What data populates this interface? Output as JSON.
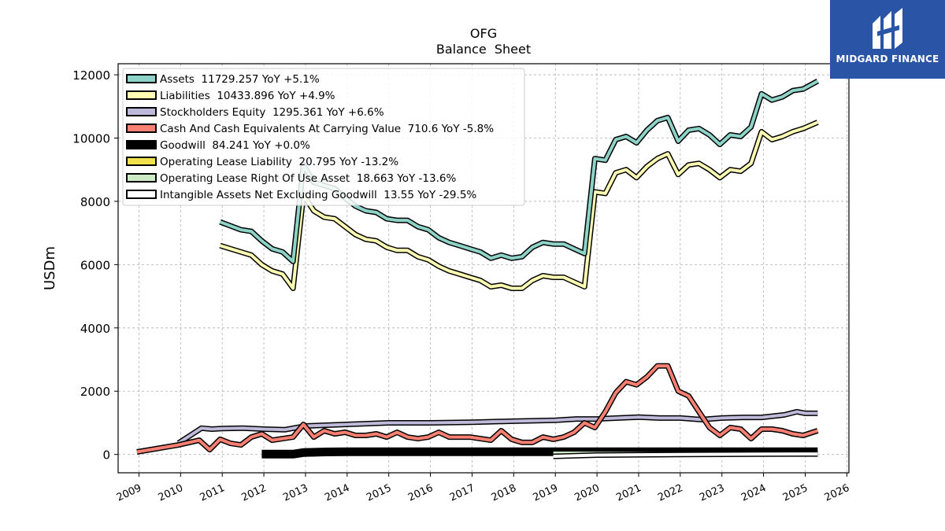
{
  "chart_data": {
    "type": "line",
    "title": "OFG",
    "subtitle": "Balance  Sheet",
    "ylabel": "USDm",
    "xlabel": "",
    "xlim": [
      2008.5,
      2026.05
    ],
    "ylim": [
      -580,
      12350
    ],
    "yticks": [
      0,
      2000,
      4000,
      6000,
      8000,
      10000,
      12000
    ],
    "xticks": [
      2009,
      2010,
      2011,
      2012,
      2013,
      2014,
      2015,
      2016,
      2017,
      2018,
      2019,
      2020,
      2021,
      2022,
      2023,
      2024,
      2025,
      2026
    ],
    "grid": true,
    "legend_position": "top-left",
    "series": [
      {
        "name": "Assets  11729.257 YoY +5.1%",
        "color": "#8dd3c7",
        "x": [
          2010.95,
          2011.45,
          2011.7,
          2011.95,
          2012.2,
          2012.45,
          2012.7,
          2012.95,
          2013.2,
          2013.45,
          2013.7,
          2013.95,
          2014.2,
          2014.45,
          2014.7,
          2014.95,
          2015.2,
          2015.45,
          2015.7,
          2015.95,
          2016.2,
          2016.45,
          2016.7,
          2016.95,
          2017.2,
          2017.45,
          2017.7,
          2017.95,
          2018.2,
          2018.45,
          2018.7,
          2018.95,
          2019.2,
          2019.45,
          2019.7,
          2019.95,
          2020.2,
          2020.45,
          2020.7,
          2020.95,
          2021.2,
          2021.45,
          2021.7,
          2021.95,
          2022.2,
          2022.45,
          2022.7,
          2022.95,
          2023.2,
          2023.45,
          2023.7,
          2023.95,
          2024.2,
          2024.45,
          2024.7,
          2024.95,
          2025.3
        ],
        "y": [
          7350,
          7100,
          7050,
          6750,
          6500,
          6400,
          6100,
          9150,
          8600,
          8500,
          8400,
          8100,
          7850,
          7700,
          7650,
          7450,
          7400,
          7400,
          7200,
          7100,
          6850,
          6700,
          6600,
          6500,
          6400,
          6200,
          6300,
          6200,
          6250,
          6550,
          6700,
          6650,
          6650,
          6500,
          6350,
          9350,
          9300,
          9950,
          10050,
          9850,
          10250,
          10550,
          10650,
          9900,
          10250,
          10300,
          10100,
          9800,
          10100,
          10050,
          10350,
          11400,
          11200,
          11300,
          11500,
          11550,
          11800
        ]
      },
      {
        "name": "Liabilities  10433.896 YoY +4.9%",
        "color": "#ffffb3",
        "x": [
          2010.95,
          2011.45,
          2011.7,
          2011.95,
          2012.2,
          2012.45,
          2012.7,
          2012.95,
          2013.2,
          2013.45,
          2013.7,
          2013.95,
          2014.2,
          2014.45,
          2014.7,
          2014.95,
          2015.2,
          2015.45,
          2015.7,
          2015.95,
          2016.2,
          2016.45,
          2016.7,
          2016.95,
          2017.2,
          2017.45,
          2017.7,
          2017.95,
          2018.2,
          2018.45,
          2018.7,
          2018.95,
          2019.2,
          2019.45,
          2019.7,
          2019.95,
          2020.2,
          2020.45,
          2020.7,
          2020.95,
          2021.2,
          2021.45,
          2021.7,
          2021.95,
          2022.2,
          2022.45,
          2022.7,
          2022.95,
          2023.2,
          2023.45,
          2023.7,
          2023.95,
          2024.2,
          2024.45,
          2024.7,
          2024.95,
          2025.3
        ],
        "y": [
          6600,
          6400,
          6300,
          6000,
          5800,
          5700,
          5250,
          8200,
          7700,
          7500,
          7450,
          7200,
          6950,
          6800,
          6750,
          6550,
          6450,
          6450,
          6250,
          6150,
          5950,
          5800,
          5700,
          5600,
          5500,
          5300,
          5350,
          5250,
          5250,
          5500,
          5650,
          5600,
          5600,
          5450,
          5300,
          8300,
          8250,
          8900,
          9000,
          8750,
          9100,
          9350,
          9500,
          8850,
          9150,
          9200,
          9000,
          8750,
          9000,
          8950,
          9200,
          10200,
          9950,
          10050,
          10200,
          10300,
          10500
        ]
      },
      {
        "name": "Stockholders Equity  1295.361 YoY +6.6%",
        "color": "#bebada",
        "x": [
          2009.95,
          2010.5,
          2010.75,
          2011.0,
          2011.5,
          2012.0,
          2012.5,
          2013.0,
          2014.0,
          2015.0,
          2016.0,
          2017.0,
          2018.0,
          2019.0,
          2019.5,
          2020.0,
          2020.5,
          2021.0,
          2021.5,
          2022.0,
          2022.5,
          2023.0,
          2023.5,
          2023.95,
          2024.5,
          2024.8,
          2025.0,
          2025.3
        ],
        "y": [
          360,
          830,
          800,
          820,
          830,
          800,
          780,
          900,
          950,
          1000,
          1000,
          1020,
          1050,
          1080,
          1120,
          1120,
          1150,
          1180,
          1150,
          1150,
          1100,
          1150,
          1170,
          1170,
          1250,
          1350,
          1300,
          1300
        ]
      },
      {
        "name": "Cash And Cash Equivalents At Carrying Value  710.6 YoY -5.8%",
        "color": "#fb8072",
        "x": [
          2008.95,
          2009.95,
          2010.45,
          2010.7,
          2010.95,
          2011.2,
          2011.45,
          2011.7,
          2011.95,
          2012.2,
          2012.45,
          2012.7,
          2012.95,
          2013.2,
          2013.45,
          2013.7,
          2013.95,
          2014.2,
          2014.45,
          2014.7,
          2014.95,
          2015.2,
          2015.45,
          2015.7,
          2015.95,
          2016.2,
          2016.45,
          2016.7,
          2016.95,
          2017.2,
          2017.45,
          2017.7,
          2017.95,
          2018.2,
          2018.45,
          2018.7,
          2018.95,
          2019.2,
          2019.45,
          2019.7,
          2019.95,
          2020.2,
          2020.45,
          2020.7,
          2020.95,
          2021.2,
          2021.45,
          2021.7,
          2021.95,
          2022.2,
          2022.45,
          2022.7,
          2022.95,
          2023.2,
          2023.45,
          2023.7,
          2023.95,
          2024.2,
          2024.45,
          2024.7,
          2024.95,
          2025.3
        ],
        "y": [
          80,
          300,
          450,
          150,
          480,
          350,
          300,
          550,
          650,
          450,
          500,
          550,
          950,
          550,
          750,
          650,
          700,
          600,
          600,
          650,
          550,
          700,
          550,
          500,
          550,
          700,
          550,
          550,
          550,
          500,
          450,
          750,
          480,
          380,
          380,
          550,
          480,
          550,
          700,
          1000,
          850,
          1350,
          1950,
          2300,
          2200,
          2450,
          2800,
          2800,
          2000,
          1850,
          1350,
          850,
          600,
          850,
          800,
          500,
          800,
          800,
          750,
          650,
          600,
          750
        ]
      },
      {
        "name": "Goodwill  84.241 YoY +0.0%",
        "color": "#000000",
        "x": [
          2011.95,
          2012.7,
          2012.95,
          2013.5,
          2014.0,
          2015.0,
          2016.0,
          2017.0,
          2018.0,
          2019.0,
          2020.0,
          2021.0,
          2022.0,
          2023.0,
          2024.0,
          2025.3
        ],
        "y": [
          10,
          10,
          60,
          80,
          84,
          84,
          84,
          84,
          84,
          84,
          84,
          84,
          84,
          84,
          84,
          84
        ]
      },
      {
        "name": "Operating Lease Liability  20.795 YoY -13.2%",
        "color": "#f0e14a",
        "x": [
          2018.95,
          2019.5,
          2020.0,
          2021.0,
          2022.0,
          2023.0,
          2024.0,
          2025.3
        ],
        "y": [
          45,
          45,
          40,
          35,
          32,
          28,
          24,
          21
        ]
      },
      {
        "name": "Operating Lease Right Of Use Asset  18.663 YoY -13.6%",
        "color": "#ccebc5",
        "x": [
          2018.95,
          2019.5,
          2020.0,
          2021.0,
          2022.0,
          2023.0,
          2024.0,
          2025.3
        ],
        "y": [
          42,
          42,
          37,
          32,
          29,
          25,
          22,
          19
        ]
      },
      {
        "name": "Intangible Assets Net Excluding Goodwill  13.55 YoY -29.5%",
        "color": "#ffffff",
        "x": [
          2018.95,
          2019.5,
          2020.0,
          2021.0,
          2022.0,
          2023.0,
          2024.0,
          2025.3
        ],
        "y": [
          -60,
          -40,
          -20,
          -10,
          0,
          5,
          10,
          14
        ]
      }
    ]
  },
  "logo": {
    "text": "MIDGARD FINANCE"
  }
}
